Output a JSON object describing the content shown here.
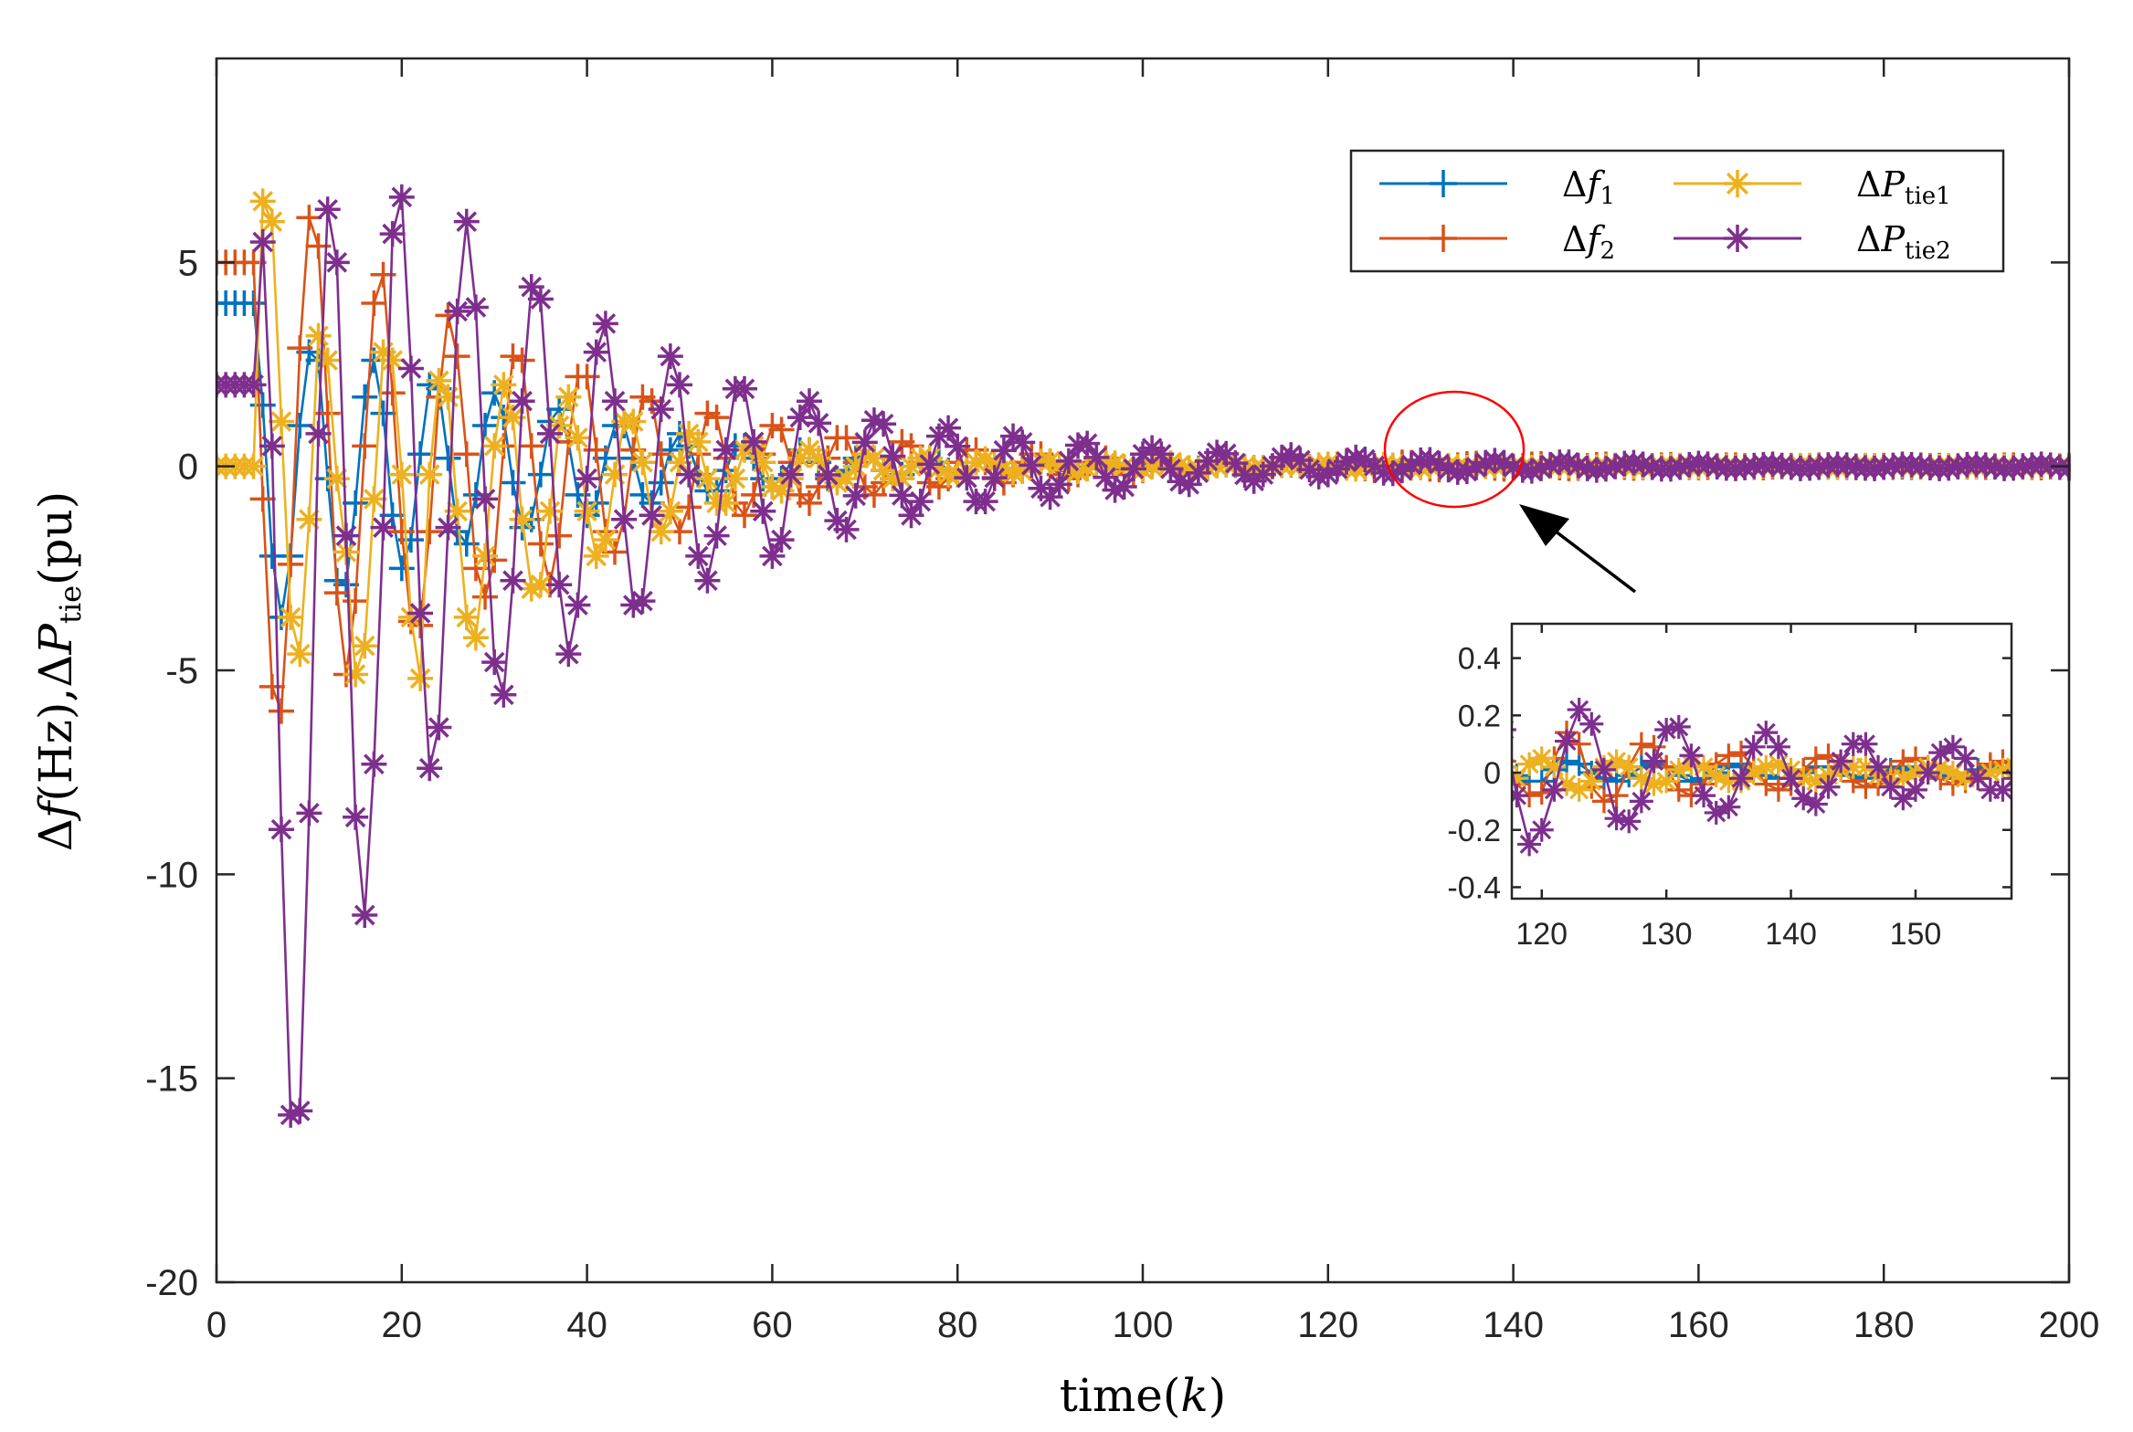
{
  "chart_data": {
    "type": "line",
    "title": "",
    "xlabel": "time(k)",
    "xlabel_parts": {
      "pre": "time(",
      "var": "k",
      "post": ")"
    },
    "ylabel": "Δf(Hz),ΔP_tie(pu)",
    "ylabel_parts": {
      "a": "Δ",
      "f": "f",
      "b": "(Hz),Δ",
      "P": "P",
      "sub": "tie",
      "c": "(pu)"
    },
    "xlim": [
      0,
      200
    ],
    "ylim": [
      -20,
      10
    ],
    "xticks": [
      0,
      20,
      40,
      60,
      80,
      100,
      120,
      140,
      160,
      180,
      200
    ],
    "yticks": [
      -20,
      -15,
      -10,
      -5,
      0,
      5
    ],
    "grid": false,
    "legend_position": "top-right",
    "x_start": 0,
    "x_step": 1,
    "series": [
      {
        "name": "Δf1",
        "label": "Δf",
        "sub": "1",
        "color": "#0072BD",
        "marker": "plus",
        "values": [
          4,
          4,
          4,
          4,
          4,
          1.5,
          -2.2,
          -3.7,
          -2.2,
          1,
          2.8,
          2.6,
          -0.3,
          -2.8,
          -2.9,
          -0.9,
          1.7,
          2.6,
          1.3,
          -1.2,
          -2.5,
          -1.8,
          0.3,
          2,
          1.9,
          0.2,
          -1.6,
          -1.9,
          -0.7,
          1,
          1.8,
          1.2,
          -0.4,
          -1.5,
          -1.3,
          -0.2,
          1.1,
          1.4,
          0.6,
          -0.7,
          -1.2,
          -0.9,
          0.2,
          1,
          1,
          0.2,
          -0.7,
          -0.9,
          -0.4,
          0.4,
          0.8,
          0.5,
          -0.2,
          -0.6,
          -0.6,
          -0.1,
          0.5,
          0.5,
          0.2,
          -0.3,
          -0.5,
          -0.3,
          0.1,
          0.4,
          0.4,
          0.1,
          -0.3,
          -0.3,
          -0.1,
          0.2,
          0.3,
          0.2,
          -0.1,
          -0.3,
          -0.2,
          0,
          0.2,
          0.2,
          0.1,
          -0.1,
          -0.2,
          -0.1,
          0.1,
          0.15,
          0.1,
          -0.05,
          -0.15,
          -0.1,
          0.03,
          0.12,
          0.1,
          0,
          -0.1,
          -0.1,
          -0.02,
          0.08,
          0.08,
          0.02,
          -0.06,
          -0.07,
          -0.02,
          0.04,
          0.06,
          0.03,
          -0.02,
          -0.05,
          -0.05,
          -0.01,
          0.03,
          0.05,
          0.03,
          -0.01,
          -0.04,
          -0.04,
          -0.01,
          0.03,
          0.04,
          0.02,
          -0.01,
          -0.03,
          -0.03,
          0.01,
          0.04,
          0.03,
          0,
          -0.02,
          -0.03,
          -0.01,
          0.02,
          0.03,
          0.02,
          -0.01,
          -0.03,
          -0.02,
          0,
          0.02,
          0.03,
          0.01,
          -0.01,
          -0.02,
          -0.02,
          0,
          0.02,
          0.02,
          0.01,
          -0.01,
          -0.02,
          -0.01,
          0.01,
          0.02,
          0.01,
          0,
          -0.01,
          -0.02,
          -0.01,
          0.01,
          0.02,
          0.01,
          0,
          -0.01,
          -0.01,
          0,
          -0.01,
          -0.02,
          -0.01,
          0.01,
          0.02,
          0.01,
          0,
          -0.01,
          -0.01,
          0,
          -0.01,
          -0.02,
          -0.01,
          0.01,
          0.02,
          0.01,
          0,
          -0.01,
          -0.01,
          0,
          -0.01,
          -0.02,
          -0.01,
          0.01,
          0.02,
          0.01,
          0,
          -0.01,
          -0.01,
          0,
          -0.01,
          -0.02,
          -0.01,
          0.01,
          0.02,
          0.01,
          0,
          -0.01,
          -0.01
        ]
      },
      {
        "name": "Δf2",
        "label": "Δf",
        "sub": "2",
        "color": "#D95319",
        "marker": "plus",
        "values": [
          5,
          5,
          5,
          5,
          5,
          -0.8,
          -5.4,
          -6,
          -2.4,
          2.9,
          6.1,
          5.4,
          1.3,
          -3.1,
          -5.1,
          -3.3,
          0.5,
          4,
          4.7,
          1.8,
          -1.6,
          -3.8,
          -3.9,
          -1.6,
          1.7,
          3.7,
          2.7,
          0.3,
          -2.5,
          -3.2,
          -2.3,
          0.5,
          2.7,
          2.6,
          0.5,
          -1.9,
          -2.9,
          -1.7,
          0.6,
          2.2,
          2.2,
          0.4,
          -1.6,
          -2.1,
          -1.3,
          0.4,
          1.7,
          1.6,
          0.3,
          -1.1,
          -1.6,
          -1,
          0.3,
          1.3,
          1.2,
          0.2,
          -0.9,
          -1.2,
          -0.7,
          0.3,
          1,
          0.9,
          0.1,
          -0.7,
          -0.9,
          -0.5,
          0.2,
          0.7,
          0.7,
          0.1,
          -0.5,
          -0.7,
          -0.4,
          0.2,
          0.6,
          0.5,
          0.1,
          -0.4,
          -0.5,
          -0.3,
          0.1,
          0.4,
          0.4,
          0.1,
          -0.3,
          -0.4,
          -0.2,
          0.1,
          0.3,
          0.3,
          0,
          -0.2,
          -0.3,
          -0.2,
          0.1,
          0.2,
          0.2,
          0,
          -0.2,
          -0.2,
          -0.1,
          0.1,
          0.13,
          0.06,
          -0.05,
          -0.12,
          -0.1,
          0,
          0.09,
          0.11,
          0.05,
          -0.04,
          -0.1,
          -0.08,
          0,
          0.08,
          0.1,
          0.04,
          -0.04,
          -0.08,
          -0.07,
          0.05,
          0.14,
          0.1,
          -0.05,
          -0.1,
          -0.08,
          0.02,
          0.1,
          0.09,
          0.02,
          -0.06,
          -0.08,
          -0.04,
          0.03,
          0.06,
          0.07,
          0.02,
          -0.04,
          -0.06,
          -0.04,
          0.01,
          0.05,
          0.06,
          0.02,
          -0.03,
          -0.05,
          -0.04,
          0,
          0.04,
          0.05,
          0.02,
          -0.02,
          -0.04,
          -0.03,
          0,
          0.03,
          0.04,
          0.01,
          -0.02,
          -0.03,
          -0.02,
          0.01,
          0.03,
          0.03,
          0,
          -0.02,
          -0.03,
          -0.01,
          0.01,
          0.02,
          -0.02,
          0.01,
          0.03,
          0.03,
          0,
          -0.02,
          -0.03,
          -0.01,
          0.01,
          0.02,
          -0.02,
          0.01,
          0.03,
          0.03,
          0,
          -0.02,
          -0.03,
          -0.01,
          0.01,
          0.02,
          -0.02,
          0.01,
          0.03,
          0.03,
          0,
          -0.02,
          -0.03,
          -0.01,
          0.01,
          0.02
        ]
      },
      {
        "name": "ΔPtie1",
        "label": "ΔP",
        "sub": "tie1",
        "color": "#EDB120",
        "marker": "star",
        "values": [
          0,
          0,
          0,
          0,
          0,
          6.5,
          6,
          1.1,
          -3.7,
          -4.6,
          -1.3,
          3.2,
          2.6,
          -0.3,
          -2.1,
          -5.1,
          -4.4,
          -0.8,
          2.8,
          2.6,
          -0.2,
          -3.7,
          -5.2,
          -0.2,
          2.1,
          1.7,
          -1.1,
          -3.7,
          -4.2,
          -2.2,
          0.5,
          2,
          1.2,
          -1.3,
          -3,
          -2.9,
          -1.1,
          1,
          1.7,
          0.7,
          -1.1,
          -2.2,
          -1.8,
          -0.2,
          1.1,
          1.1,
          0.1,
          -1.2,
          -1.6,
          -1.1,
          0.1,
          0.8,
          0.6,
          -0.3,
          -0.9,
          -0.9,
          -0.3,
          0.4,
          0.5,
          0.1,
          -0.5,
          -0.6,
          -0.3,
          0.2,
          0.4,
          0.2,
          -0.2,
          -0.4,
          -0.3,
          0,
          0.3,
          0.2,
          -0.1,
          -0.3,
          -0.3,
          0,
          0.2,
          0.2,
          -0.05,
          -0.2,
          -0.2,
          -0.1,
          0.1,
          0.18,
          0.1,
          -0.05,
          -0.15,
          -0.12,
          0,
          0.12,
          0.13,
          0.03,
          -0.08,
          -0.12,
          -0.06,
          0.04,
          0.1,
          0.08,
          -0.01,
          -0.08,
          -0.08,
          -0.01,
          0.06,
          0.08,
          0.03,
          -0.04,
          -0.07,
          -0.04,
          0.02,
          0.06,
          0.05,
          0,
          -0.05,
          -0.05,
          -0.01,
          0.03,
          0.05,
          0.02,
          -0.02,
          0.03,
          0.05,
          0.02,
          -0.04,
          -0.06,
          -0.03,
          0.02,
          0.04,
          0.02,
          -0.02,
          -0.04,
          -0.03,
          0.01,
          0.03,
          0.02,
          -0.01,
          -0.03,
          -0.03,
          0,
          0.02,
          0.03,
          0.01,
          -0.02,
          -0.03,
          -0.01,
          0.01,
          0.02,
          0.02,
          -0.01,
          -0.02,
          -0.02,
          0,
          0.02,
          0.02,
          0,
          -0.02,
          -0.02,
          0,
          0.01,
          0.02,
          0,
          -0.01,
          0.02,
          0.02,
          0,
          -0.02,
          -0.02,
          0,
          0.01,
          0.02,
          0,
          -0.01,
          0.02,
          0.02,
          0,
          -0.02,
          -0.02,
          0,
          0.01,
          0.02,
          0,
          -0.01,
          0.02,
          0.02,
          0,
          -0.02,
          -0.02,
          0,
          0.01,
          0.02,
          0,
          -0.01,
          0.02,
          0.02,
          0,
          -0.02,
          -0.02,
          0,
          0.01,
          0.02,
          0,
          -0.01
        ]
      },
      {
        "name": "ΔPtie2",
        "label": "ΔP",
        "sub": "tie2",
        "color": "#7E2F8E",
        "marker": "star",
        "values": [
          2,
          2,
          2,
          2,
          2,
          5.5,
          0.5,
          -8.9,
          -15.9,
          -15.8,
          -8.5,
          0.8,
          6.3,
          5,
          -1.7,
          -8.6,
          -11,
          -7.3,
          -1.5,
          5.7,
          6.6,
          2.4,
          -3.6,
          -7.4,
          -6.4,
          -1.5,
          3.8,
          6,
          3.9,
          -0.8,
          -4.8,
          -5.6,
          -2.8,
          1.6,
          4.4,
          4.1,
          0.8,
          -2.9,
          -4.6,
          -3.4,
          -0.3,
          2.8,
          3.5,
          1.6,
          -1.3,
          -3.4,
          -3.3,
          -1.2,
          1.4,
          2.7,
          2,
          -0.2,
          -2.2,
          -2.8,
          -1.7,
          0.4,
          1.9,
          1.9,
          0.6,
          -1.1,
          -2.2,
          -1.8,
          -0.2,
          1.2,
          1.6,
          1.06,
          -0.21,
          -1.33,
          -1.55,
          -0.72,
          0.59,
          1.13,
          1.04,
          0.25,
          -0.71,
          -1.2,
          -0.86,
          0.05,
          0.74,
          0.94,
          0.49,
          -0.28,
          -0.86,
          -0.86,
          -0.28,
          0.39,
          0.74,
          0.59,
          0.03,
          -0.54,
          -0.75,
          -0.44,
          0.13,
          0.52,
          0.56,
          0.22,
          -0.27,
          -0.58,
          -0.5,
          -0.06,
          0.3,
          0.45,
          0.3,
          -0.06,
          -0.37,
          -0.44,
          -0.16,
          0.13,
          0.34,
          0.31,
          0.08,
          -0.21,
          -0.36,
          -0.2,
          0.01,
          0.22,
          0.28,
          0.15,
          -0.08,
          -0.25,
          -0.2,
          -0.06,
          0.11,
          0.22,
          0.17,
          0.01,
          -0.16,
          -0.17,
          -0.1,
          0.04,
          0.15,
          0.16,
          0.06,
          -0.08,
          -0.14,
          -0.12,
          -0.02,
          0.09,
          0.14,
          0.09,
          -0.02,
          -0.09,
          -0.11,
          -0.05,
          0.04,
          0.1,
          0.1,
          0.02,
          -0.05,
          -0.09,
          -0.06,
          0,
          0.07,
          0.09,
          0.05,
          -0.02,
          -0.06,
          -0.06,
          -0.02,
          0.04,
          0.07,
          0.05,
          0,
          -0.04,
          -0.05,
          -0.03,
          0.01,
          0.04,
          0.05,
          0.02,
          -0.02,
          -0.05,
          -0.04,
          -0.01,
          0.03,
          0.05,
          0.03,
          -0.01,
          -0.04,
          -0.05,
          -0.02,
          0.02,
          0.05,
          0.04,
          0.01,
          -0.03,
          -0.05,
          -0.04,
          0,
          0.04,
          0.05,
          0.03,
          -0.01,
          -0.05,
          -0.04,
          0,
          0.03,
          0.05,
          0.03,
          -0.02,
          -0.04
        ]
      }
    ],
    "inset": {
      "xlim": [
        117.6,
        157.7
      ],
      "ylim": [
        -0.44,
        0.52
      ],
      "xticks": [
        120,
        130,
        140,
        150
      ],
      "yticks": [
        -0.4,
        -0.2,
        0,
        0.2,
        0.4
      ],
      "ytick_labels": [
        "-0.4",
        "-0.2",
        "0",
        "0.2",
        "0.4"
      ]
    },
    "annotation": {
      "highlight": "ellipse",
      "color": "#FF0000",
      "arrow": "points to zoomed region"
    }
  }
}
